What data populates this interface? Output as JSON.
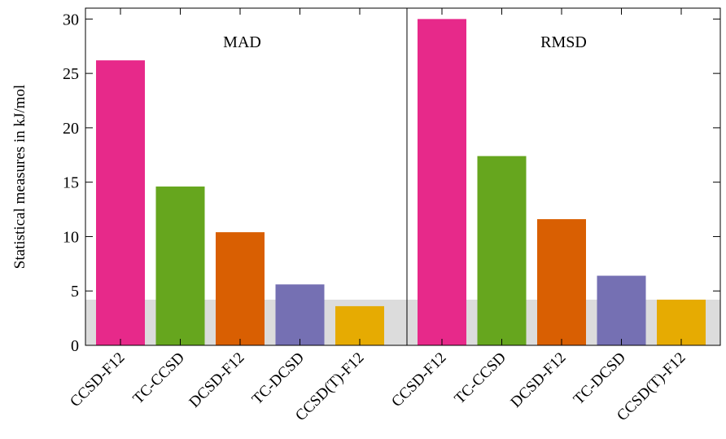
{
  "chart_data": {
    "type": "bar",
    "ylabel": "Statistical measures in kJ/mol",
    "ylim": [
      0,
      31
    ],
    "yticks": [
      0,
      5,
      10,
      15,
      20,
      25,
      30
    ],
    "grid": false,
    "shaded_band": {
      "from": 0,
      "to": 4.2,
      "color": "#dcdcdc"
    },
    "categories": [
      "CCSD-F12",
      "TC-CCSD",
      "DCSD-F12",
      "TC-DCSD",
      "CCSD(T)-F12"
    ],
    "colors": [
      "#e7298a",
      "#66a61e",
      "#d95f02",
      "#7570b3",
      "#e6ab02"
    ],
    "panels": [
      {
        "title": "MAD",
        "values": [
          26.2,
          14.6,
          10.4,
          5.6,
          3.6
        ]
      },
      {
        "title": "RMSD",
        "values": [
          30.0,
          17.4,
          11.6,
          6.4,
          4.2
        ]
      }
    ]
  }
}
